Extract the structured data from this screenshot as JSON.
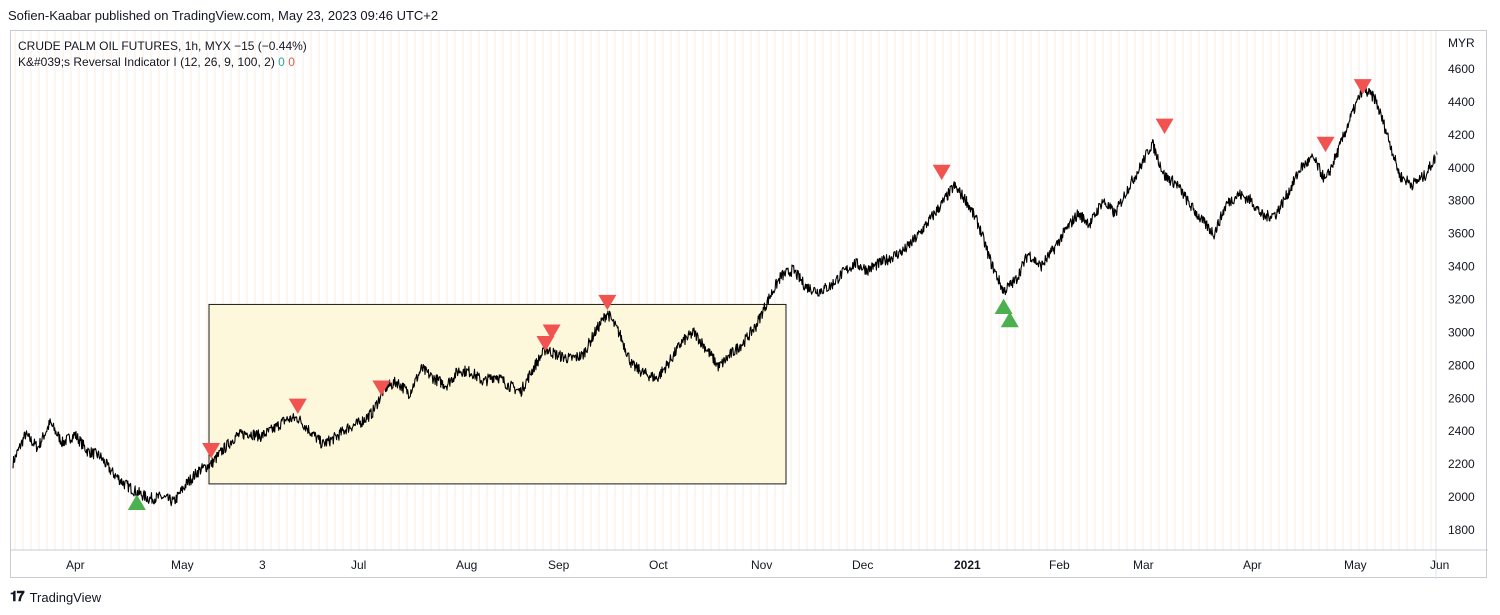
{
  "header": {
    "publisher": "Sofien-Kaabar published on TradingView.com, May 23, 2023 09:46 UTC+2"
  },
  "legend": {
    "symbol": "CRUDE PALM OIL FUTURES, 1h, MYX",
    "change": "−15 (−0.44%)",
    "indicator": "K&#039;s Reversal Indicator I (12, 26, 9, 100, 2)",
    "buy_count": "0",
    "sell_count": "0"
  },
  "footer": {
    "brand": "TradingView"
  },
  "colors": {
    "price": "#000000",
    "buy": "#4caf50",
    "sell": "#f05350",
    "box_fill": "#fdf8dc",
    "grid": "#fbeee0"
  },
  "chart_data": {
    "type": "line",
    "title": "CRUDE PALM OIL FUTURES, 1h, MYX",
    "currency": "MYR",
    "ylim": [
      1700,
      4700
    ],
    "y_ticks": [
      1800,
      2000,
      2200,
      2400,
      2600,
      2800,
      3000,
      3200,
      3400,
      3600,
      3800,
      4000,
      4200,
      4400,
      4600
    ],
    "x_ticks": [
      {
        "label": "Apr",
        "t": 0.5
      },
      {
        "label": "May",
        "t": 1.5
      },
      {
        "label": "3",
        "t": 2.5
      },
      {
        "label": "Jul",
        "t": 3.5
      },
      {
        "label": "Aug",
        "t": 4.5
      },
      {
        "label": "Sep",
        "t": 5.5
      },
      {
        "label": "Oct",
        "t": 6.5
      },
      {
        "label": "Nov",
        "t": 7.5
      },
      {
        "label": "Dec",
        "t": 8.5
      },
      {
        "label": "2021",
        "t": 9.5,
        "bold": true
      },
      {
        "label": "Feb",
        "t": 10.5
      },
      {
        "label": "Mar",
        "t": 11.5
      },
      {
        "label": "Apr",
        "t": 12.5
      },
      {
        "label": "May",
        "t": 13.5
      },
      {
        "label": "Jun",
        "t": 14.5
      }
    ],
    "price": [
      [
        0.0,
        2210
      ],
      [
        0.2,
        2380
      ],
      [
        0.4,
        2300
      ],
      [
        0.6,
        2450
      ],
      [
        0.8,
        2330
      ],
      [
        1.0,
        2380
      ],
      [
        1.2,
        2280
      ],
      [
        1.4,
        2250
      ],
      [
        1.6,
        2150
      ],
      [
        1.8,
        2080
      ],
      [
        2.0,
        2030
      ],
      [
        2.2,
        1990
      ],
      [
        2.4,
        2000
      ],
      [
        2.6,
        1970
      ],
      [
        2.8,
        2080
      ],
      [
        3.0,
        2160
      ],
      [
        3.2,
        2200
      ],
      [
        3.4,
        2290
      ],
      [
        3.6,
        2370
      ],
      [
        3.8,
        2390
      ],
      [
        4.0,
        2370
      ],
      [
        4.2,
        2410
      ],
      [
        4.4,
        2470
      ],
      [
        4.6,
        2480
      ],
      [
        4.8,
        2400
      ],
      [
        5.0,
        2320
      ],
      [
        5.2,
        2360
      ],
      [
        5.4,
        2420
      ],
      [
        5.6,
        2450
      ],
      [
        5.8,
        2510
      ],
      [
        6.0,
        2660
      ],
      [
        6.2,
        2700
      ],
      [
        6.4,
        2630
      ],
      [
        6.6,
        2780
      ],
      [
        6.8,
        2720
      ],
      [
        7.0,
        2680
      ],
      [
        7.2,
        2770
      ],
      [
        7.4,
        2760
      ],
      [
        7.6,
        2700
      ],
      [
        7.8,
        2740
      ],
      [
        8.0,
        2680
      ],
      [
        8.2,
        2640
      ],
      [
        8.4,
        2780
      ],
      [
        8.6,
        2900
      ],
      [
        8.8,
        2860
      ],
      [
        9.0,
        2840
      ],
      [
        9.2,
        2860
      ],
      [
        9.4,
        3000
      ],
      [
        9.6,
        3120
      ],
      [
        9.8,
        2990
      ],
      [
        10.0,
        2800
      ],
      [
        10.2,
        2750
      ],
      [
        10.4,
        2720
      ],
      [
        10.6,
        2820
      ],
      [
        10.8,
        2940
      ],
      [
        11.0,
        3000
      ],
      [
        11.2,
        2900
      ],
      [
        11.4,
        2790
      ],
      [
        11.6,
        2870
      ],
      [
        11.8,
        2940
      ],
      [
        12.0,
        3040
      ],
      [
        12.2,
        3200
      ],
      [
        12.4,
        3340
      ],
      [
        12.6,
        3380
      ],
      [
        12.8,
        3280
      ],
      [
        13.0,
        3250
      ],
      [
        13.2,
        3280
      ],
      [
        13.4,
        3360
      ],
      [
        13.6,
        3420
      ],
      [
        13.8,
        3380
      ],
      [
        14.0,
        3420
      ],
      [
        14.2,
        3460
      ],
      [
        14.4,
        3500
      ],
      [
        14.6,
        3580
      ],
      [
        14.8,
        3680
      ],
      [
        15.0,
        3780
      ],
      [
        15.2,
        3890
      ],
      [
        15.4,
        3800
      ],
      [
        15.6,
        3650
      ],
      [
        15.8,
        3420
      ],
      [
        16.0,
        3250
      ],
      [
        16.2,
        3320
      ],
      [
        16.4,
        3480
      ],
      [
        16.6,
        3400
      ],
      [
        16.8,
        3500
      ],
      [
        17.0,
        3620
      ],
      [
        17.2,
        3720
      ],
      [
        17.4,
        3660
      ],
      [
        17.6,
        3800
      ],
      [
        17.8,
        3720
      ],
      [
        18.0,
        3870
      ],
      [
        18.2,
        4000
      ],
      [
        18.4,
        4150
      ],
      [
        18.6,
        3950
      ],
      [
        18.8,
        3900
      ],
      [
        19.0,
        3780
      ],
      [
        19.2,
        3680
      ],
      [
        19.4,
        3600
      ],
      [
        19.6,
        3780
      ],
      [
        19.8,
        3840
      ],
      [
        20.0,
        3800
      ],
      [
        20.2,
        3700
      ],
      [
        20.4,
        3720
      ],
      [
        20.6,
        3850
      ],
      [
        20.8,
        4000
      ],
      [
        21.0,
        4060
      ],
      [
        21.2,
        3920
      ],
      [
        21.4,
        4100
      ],
      [
        21.6,
        4300
      ],
      [
        21.8,
        4480
      ],
      [
        22.0,
        4420
      ],
      [
        22.2,
        4200
      ],
      [
        22.4,
        3950
      ],
      [
        22.6,
        3900
      ],
      [
        22.8,
        3950
      ],
      [
        23.0,
        4080
      ]
    ],
    "buy_signals": [
      [
        2.0,
        1960
      ],
      [
        16.0,
        3150
      ],
      [
        16.1,
        3070
      ]
    ],
    "sell_signals": [
      [
        3.2,
        2290
      ],
      [
        4.6,
        2560
      ],
      [
        5.95,
        2670
      ],
      [
        8.6,
        2940
      ],
      [
        8.7,
        3010
      ],
      [
        9.6,
        3190
      ],
      [
        15.0,
        3980
      ],
      [
        18.6,
        4260
      ],
      [
        21.2,
        4150
      ],
      [
        21.8,
        4500
      ]
    ],
    "highlight_box": {
      "x0": 3.0,
      "x1": 8.95,
      "y0": 2080,
      "y1": 3170
    }
  }
}
